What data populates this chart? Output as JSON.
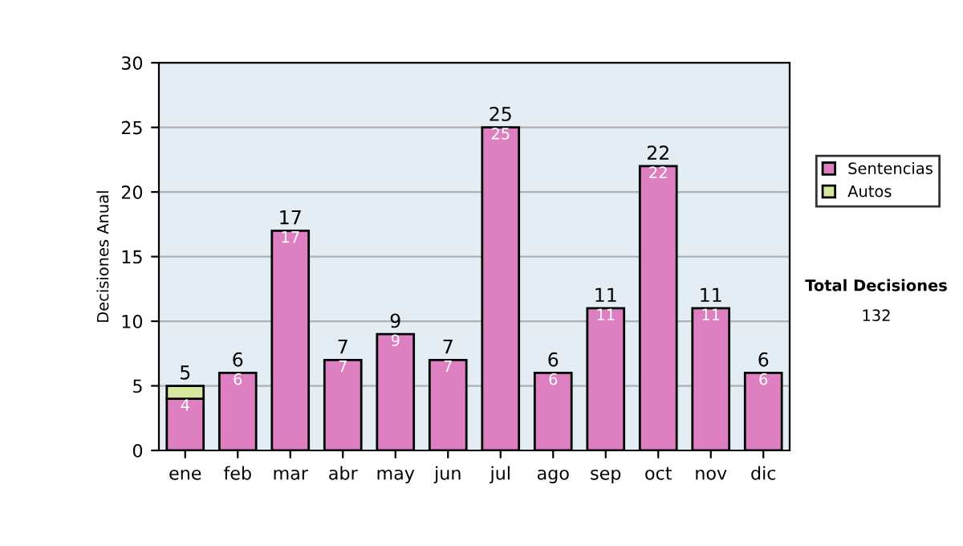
{
  "chart_data": {
    "type": "bar",
    "stacked": true,
    "ylabel": "Decisiones Anual",
    "categories": [
      "ene",
      "feb",
      "mar",
      "abr",
      "may",
      "jun",
      "jul",
      "ago",
      "sep",
      "oct",
      "nov",
      "dic"
    ],
    "series": [
      {
        "name": "Sentencias",
        "color": "#dd7fc0",
        "values": [
          4,
          6,
          17,
          7,
          9,
          7,
          25,
          6,
          11,
          22,
          11,
          6
        ],
        "value_labels": [
          "4",
          "6",
          "17",
          "7",
          "9",
          "7",
          "25",
          "6",
          "11",
          "22",
          "11",
          "6"
        ]
      },
      {
        "name": "Autos",
        "color": "#d6e8a0",
        "values": [
          1,
          null,
          null,
          null,
          null,
          null,
          null,
          null,
          null,
          null,
          null,
          null
        ]
      }
    ],
    "totals": [
      "5",
      "6",
      "17",
      "7",
      "9",
      "7",
      "25",
      "6",
      "11",
      "22",
      "11",
      "6"
    ],
    "ylim": [
      0,
      30
    ],
    "yticks": [
      0,
      5,
      10,
      15,
      20,
      25,
      30
    ],
    "grid": "y",
    "legend": "right",
    "annotations": [
      "Total Decisiones",
      "132"
    ]
  }
}
